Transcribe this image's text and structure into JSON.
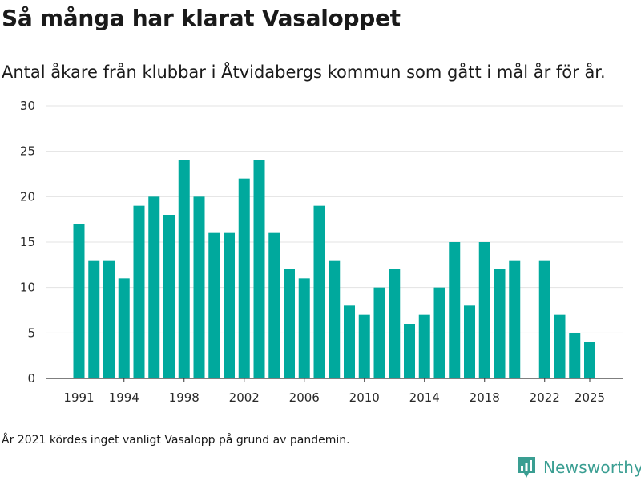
{
  "header": {
    "title": "Så många har klarat Vasaloppet",
    "subtitle": "Antal åkare från klubbar i Åtvidabergs kommun som gått i mål år för år."
  },
  "footnote": "År 2021 kördes inget vanligt Vasalopp på grund av pandemin.",
  "brand": {
    "name": "Newsworthy",
    "icon": "newsworthy-logo-icon",
    "color": "#3a9e92"
  },
  "chart_data": {
    "type": "bar",
    "title": "Så många har klarat Vasaloppet",
    "xlabel": "",
    "ylabel": "",
    "ylim": [
      0,
      30
    ],
    "yticks": [
      0,
      5,
      10,
      15,
      20,
      25,
      30
    ],
    "xticks": [
      "1991",
      "1994",
      "1998",
      "2002",
      "2006",
      "2010",
      "2014",
      "2018",
      "2022",
      "2025"
    ],
    "bar_color": "#00a99d",
    "grid": true,
    "x": [
      1991,
      1992,
      1993,
      1994,
      1995,
      1996,
      1997,
      1998,
      1999,
      2000,
      2001,
      2002,
      2003,
      2004,
      2005,
      2006,
      2007,
      2008,
      2009,
      2010,
      2011,
      2012,
      2013,
      2014,
      2015,
      2016,
      2017,
      2018,
      2019,
      2020,
      2021,
      2022,
      2023,
      2024,
      2025
    ],
    "values": [
      17,
      13,
      13,
      11,
      19,
      20,
      18,
      24,
      20,
      16,
      16,
      22,
      24,
      16,
      12,
      11,
      19,
      13,
      8,
      7,
      10,
      12,
      6,
      7,
      10,
      15,
      8,
      15,
      12,
      13,
      null,
      13,
      7,
      5,
      4
    ]
  }
}
